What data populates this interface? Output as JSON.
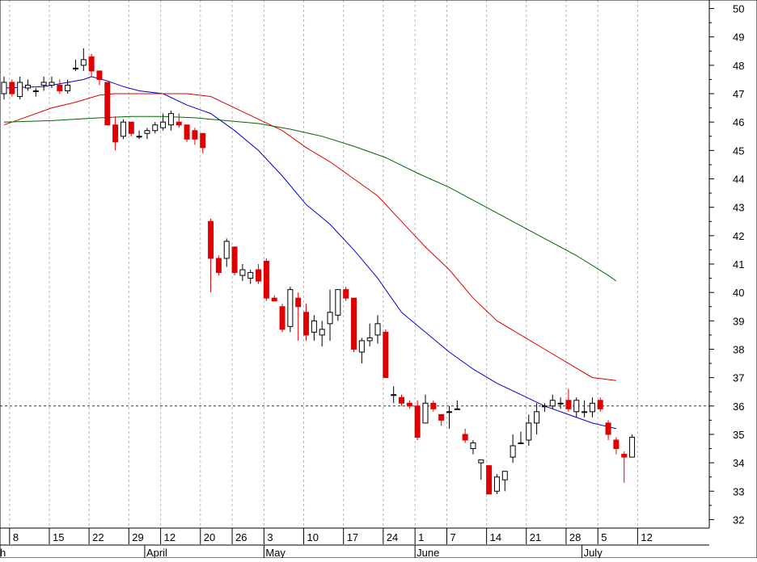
{
  "chart_data": {
    "type": "candlestick",
    "reference_line": 36,
    "y_ticks": [
      32,
      33,
      34,
      35,
      36,
      37,
      38,
      39,
      40,
      41,
      42,
      43,
      44,
      45,
      46,
      47,
      48,
      49,
      50
    ],
    "y_range": [
      31.7,
      50.3
    ],
    "x_day_labels": [
      {
        "x": 1,
        "label": "8"
      },
      {
        "x": 6,
        "label": "15"
      },
      {
        "x": 11,
        "label": "22"
      },
      {
        "x": 16,
        "label": "29"
      },
      {
        "x": 20,
        "label": "12"
      },
      {
        "x": 25,
        "label": "20"
      },
      {
        "x": 29,
        "label": "26"
      },
      {
        "x": 33,
        "label": "3"
      },
      {
        "x": 38,
        "label": "10"
      },
      {
        "x": 43,
        "label": "17"
      },
      {
        "x": 48,
        "label": "24"
      },
      {
        "x": 52,
        "label": "1"
      },
      {
        "x": 56,
        "label": "7"
      },
      {
        "x": 61,
        "label": "14"
      },
      {
        "x": 66,
        "label": "21"
      },
      {
        "x": 71,
        "label": "28"
      },
      {
        "x": 75,
        "label": "5"
      },
      {
        "x": 80,
        "label": "12"
      }
    ],
    "x_month_labels": [
      {
        "x": 0,
        "label": "h"
      },
      {
        "x": 18,
        "label": "April"
      },
      {
        "x": 33,
        "label": "May"
      },
      {
        "x": 52,
        "label": "June"
      },
      {
        "x": 73,
        "label": "July"
      }
    ],
    "candles": [
      {
        "o": 47.0,
        "h": 47.6,
        "l": 46.8,
        "c": 47.4
      },
      {
        "o": 47.4,
        "h": 47.5,
        "l": 46.9,
        "c": 47.0
      },
      {
        "o": 46.9,
        "h": 47.6,
        "l": 46.8,
        "c": 47.4
      },
      {
        "o": 47.2,
        "h": 47.5,
        "l": 47.1,
        "c": 47.3
      },
      {
        "o": 47.1,
        "h": 47.2,
        "l": 46.9,
        "c": 47.1
      },
      {
        "o": 47.3,
        "h": 47.6,
        "l": 47.1,
        "c": 47.4
      },
      {
        "o": 47.3,
        "h": 47.6,
        "l": 47.2,
        "c": 47.4
      },
      {
        "o": 47.3,
        "h": 47.5,
        "l": 47.0,
        "c": 47.1
      },
      {
        "o": 47.1,
        "h": 47.5,
        "l": 47.0,
        "c": 47.3
      },
      {
        "o": 47.9,
        "h": 48.2,
        "l": 47.8,
        "c": 47.9
      },
      {
        "o": 48.0,
        "h": 48.6,
        "l": 47.8,
        "c": 48.2
      },
      {
        "o": 48.3,
        "h": 48.4,
        "l": 47.6,
        "c": 47.8
      },
      {
        "o": 47.8,
        "h": 47.8,
        "l": 47.3,
        "c": 47.5
      },
      {
        "o": 47.4,
        "h": 47.4,
        "l": 45.9,
        "c": 45.9
      },
      {
        "o": 45.9,
        "h": 46.2,
        "l": 45.0,
        "c": 45.3
      },
      {
        "o": 45.5,
        "h": 46.1,
        "l": 45.4,
        "c": 46.0
      },
      {
        "o": 46.0,
        "h": 46.0,
        "l": 45.5,
        "c": 45.6
      },
      {
        "o": 45.5,
        "h": 45.7,
        "l": 45.4,
        "c": 45.5
      },
      {
        "o": 45.6,
        "h": 45.8,
        "l": 45.4,
        "c": 45.7
      },
      {
        "o": 45.7,
        "h": 46.0,
        "l": 45.6,
        "c": 45.9
      },
      {
        "o": 45.8,
        "h": 46.3,
        "l": 45.7,
        "c": 46.0
      },
      {
        "o": 45.9,
        "h": 46.4,
        "l": 45.7,
        "c": 46.3
      },
      {
        "o": 46.0,
        "h": 46.3,
        "l": 45.8,
        "c": 45.9
      },
      {
        "o": 45.9,
        "h": 45.9,
        "l": 45.3,
        "c": 45.4
      },
      {
        "o": 45.7,
        "h": 45.8,
        "l": 45.2,
        "c": 45.4
      },
      {
        "o": 45.6,
        "h": 45.6,
        "l": 44.9,
        "c": 45.1
      },
      {
        "o": 42.5,
        "h": 42.6,
        "l": 40.0,
        "c": 41.2
      },
      {
        "o": 41.2,
        "h": 41.3,
        "l": 40.6,
        "c": 40.7
      },
      {
        "o": 41.2,
        "h": 41.9,
        "l": 40.9,
        "c": 41.8
      },
      {
        "o": 41.6,
        "h": 41.6,
        "l": 40.6,
        "c": 40.7
      },
      {
        "o": 40.6,
        "h": 41.0,
        "l": 40.4,
        "c": 40.8
      },
      {
        "o": 40.5,
        "h": 40.8,
        "l": 40.3,
        "c": 40.7
      },
      {
        "o": 40.8,
        "h": 41.0,
        "l": 40.3,
        "c": 40.4
      },
      {
        "o": 41.1,
        "h": 41.2,
        "l": 39.7,
        "c": 39.8
      },
      {
        "o": 39.8,
        "h": 39.9,
        "l": 39.7,
        "c": 39.7
      },
      {
        "o": 39.5,
        "h": 39.6,
        "l": 38.6,
        "c": 38.7
      },
      {
        "o": 38.8,
        "h": 40.2,
        "l": 38.6,
        "c": 40.1
      },
      {
        "o": 39.8,
        "h": 40.0,
        "l": 38.3,
        "c": 39.5
      },
      {
        "o": 39.3,
        "h": 39.6,
        "l": 38.3,
        "c": 38.5
      },
      {
        "o": 38.6,
        "h": 39.2,
        "l": 38.3,
        "c": 39.0
      },
      {
        "o": 38.5,
        "h": 39.0,
        "l": 38.1,
        "c": 38.7
      },
      {
        "o": 38.9,
        "h": 40.1,
        "l": 38.3,
        "c": 39.3
      },
      {
        "o": 39.2,
        "h": 40.1,
        "l": 39.0,
        "c": 40.1
      },
      {
        "o": 40.1,
        "h": 40.2,
        "l": 39.7,
        "c": 39.8
      },
      {
        "o": 39.8,
        "h": 39.8,
        "l": 37.9,
        "c": 38.0
      },
      {
        "o": 37.9,
        "h": 38.4,
        "l": 37.5,
        "c": 38.3
      },
      {
        "o": 38.3,
        "h": 38.9,
        "l": 38.1,
        "c": 38.4
      },
      {
        "o": 38.5,
        "h": 39.2,
        "l": 38.2,
        "c": 38.9
      },
      {
        "o": 38.6,
        "h": 38.7,
        "l": 37.0,
        "c": 37.0
      },
      {
        "o": 36.4,
        "h": 36.7,
        "l": 36.1,
        "c": 36.4
      },
      {
        "o": 36.3,
        "h": 36.4,
        "l": 36.0,
        "c": 36.1
      },
      {
        "o": 36.1,
        "h": 36.2,
        "l": 35.9,
        "c": 36.0
      },
      {
        "o": 36.0,
        "h": 36.2,
        "l": 34.8,
        "c": 34.9
      },
      {
        "o": 35.4,
        "h": 36.4,
        "l": 35.4,
        "c": 36.1
      },
      {
        "o": 36.1,
        "h": 36.2,
        "l": 35.8,
        "c": 35.9
      },
      {
        "o": 35.7,
        "h": 35.7,
        "l": 35.3,
        "c": 35.5
      },
      {
        "o": 35.8,
        "h": 36.0,
        "l": 35.2,
        "c": 35.8
      },
      {
        "o": 35.9,
        "h": 36.2,
        "l": 35.9,
        "c": 35.9
      },
      {
        "o": 35.0,
        "h": 35.2,
        "l": 34.7,
        "c": 34.8
      },
      {
        "o": 34.5,
        "h": 34.8,
        "l": 34.3,
        "c": 34.7
      },
      {
        "o": 34.0,
        "h": 34.1,
        "l": 33.4,
        "c": 34.1
      },
      {
        "o": 33.9,
        "h": 33.9,
        "l": 32.9,
        "c": 32.9
      },
      {
        "o": 33.0,
        "h": 33.6,
        "l": 32.9,
        "c": 33.5
      },
      {
        "o": 33.4,
        "h": 33.6,
        "l": 33.0,
        "c": 33.7
      },
      {
        "o": 34.2,
        "h": 35.0,
        "l": 34.0,
        "c": 34.6
      },
      {
        "o": 34.7,
        "h": 35.1,
        "l": 34.7,
        "c": 34.7
      },
      {
        "o": 34.8,
        "h": 35.7,
        "l": 34.6,
        "c": 35.4
      },
      {
        "o": 35.4,
        "h": 36.1,
        "l": 35.0,
        "c": 35.8
      },
      {
        "o": 36.0,
        "h": 36.1,
        "l": 35.8,
        "c": 36.0
      },
      {
        "o": 36.0,
        "h": 36.4,
        "l": 35.9,
        "c": 36.2
      },
      {
        "o": 36.1,
        "h": 36.3,
        "l": 35.9,
        "c": 36.1
      },
      {
        "o": 36.2,
        "h": 36.6,
        "l": 35.8,
        "c": 35.9
      },
      {
        "o": 35.8,
        "h": 36.3,
        "l": 35.6,
        "c": 36.2
      },
      {
        "o": 35.8,
        "h": 36.2,
        "l": 35.6,
        "c": 35.8
      },
      {
        "o": 35.8,
        "h": 36.3,
        "l": 35.6,
        "c": 36.1
      },
      {
        "o": 36.2,
        "h": 36.3,
        "l": 35.8,
        "c": 35.9
      },
      {
        "o": 35.4,
        "h": 35.5,
        "l": 34.8,
        "c": 35.0
      },
      {
        "o": 34.8,
        "h": 34.9,
        "l": 34.3,
        "c": 34.5
      },
      {
        "o": 34.3,
        "h": 34.4,
        "l": 33.3,
        "c": 34.2
      },
      {
        "o": 34.2,
        "h": 35.0,
        "l": 34.2,
        "c": 34.9
      }
    ],
    "moving_averages": [
      {
        "color": "#0000cc",
        "points": [
          [
            0,
            47.2
          ],
          [
            5,
            47.25
          ],
          [
            10,
            47.5
          ],
          [
            11,
            47.6
          ],
          [
            13,
            47.45
          ],
          [
            15,
            47.25
          ],
          [
            17,
            47.1
          ],
          [
            20,
            47.0
          ],
          [
            23,
            46.6
          ],
          [
            26,
            46.3
          ],
          [
            29,
            45.7
          ],
          [
            32,
            45.0
          ],
          [
            35,
            44.1
          ],
          [
            38,
            43.1
          ],
          [
            41,
            42.4
          ],
          [
            44,
            41.5
          ],
          [
            47,
            40.5
          ],
          [
            50,
            39.3
          ],
          [
            53,
            38.6
          ],
          [
            56,
            37.9
          ],
          [
            59,
            37.3
          ],
          [
            62,
            36.8
          ],
          [
            65,
            36.4
          ],
          [
            68,
            36.0
          ],
          [
            71,
            35.7
          ],
          [
            74,
            35.4
          ],
          [
            77,
            35.2
          ]
        ]
      },
      {
        "color": "#dd0000",
        "points": [
          [
            0,
            45.9
          ],
          [
            3,
            46.2
          ],
          [
            6,
            46.5
          ],
          [
            9,
            46.7
          ],
          [
            12,
            46.95
          ],
          [
            14,
            47.0
          ],
          [
            17,
            47.0
          ],
          [
            20,
            47.0
          ],
          [
            23,
            47.0
          ],
          [
            26,
            46.9
          ],
          [
            29,
            46.5
          ],
          [
            32,
            46.1
          ],
          [
            35,
            45.7
          ],
          [
            38,
            45.1
          ],
          [
            41,
            44.6
          ],
          [
            44,
            44.0
          ],
          [
            47,
            43.4
          ],
          [
            50,
            42.5
          ],
          [
            53,
            41.6
          ],
          [
            56,
            40.8
          ],
          [
            59,
            39.8
          ],
          [
            62,
            39.0
          ],
          [
            65,
            38.5
          ],
          [
            68,
            38.0
          ],
          [
            71,
            37.5
          ],
          [
            74,
            37.0
          ],
          [
            77,
            36.9
          ]
        ]
      },
      {
        "color": "#006600",
        "points": [
          [
            0,
            46.0
          ],
          [
            6,
            46.05
          ],
          [
            12,
            46.15
          ],
          [
            16,
            46.2
          ],
          [
            20,
            46.2
          ],
          [
            24,
            46.15
          ],
          [
            28,
            46.05
          ],
          [
            32,
            45.95
          ],
          [
            36,
            45.75
          ],
          [
            40,
            45.5
          ],
          [
            44,
            45.15
          ],
          [
            48,
            44.75
          ],
          [
            52,
            44.2
          ],
          [
            56,
            43.7
          ],
          [
            60,
            43.1
          ],
          [
            64,
            42.5
          ],
          [
            68,
            41.9
          ],
          [
            72,
            41.3
          ],
          [
            76,
            40.6
          ],
          [
            77,
            40.4
          ]
        ]
      }
    ]
  }
}
